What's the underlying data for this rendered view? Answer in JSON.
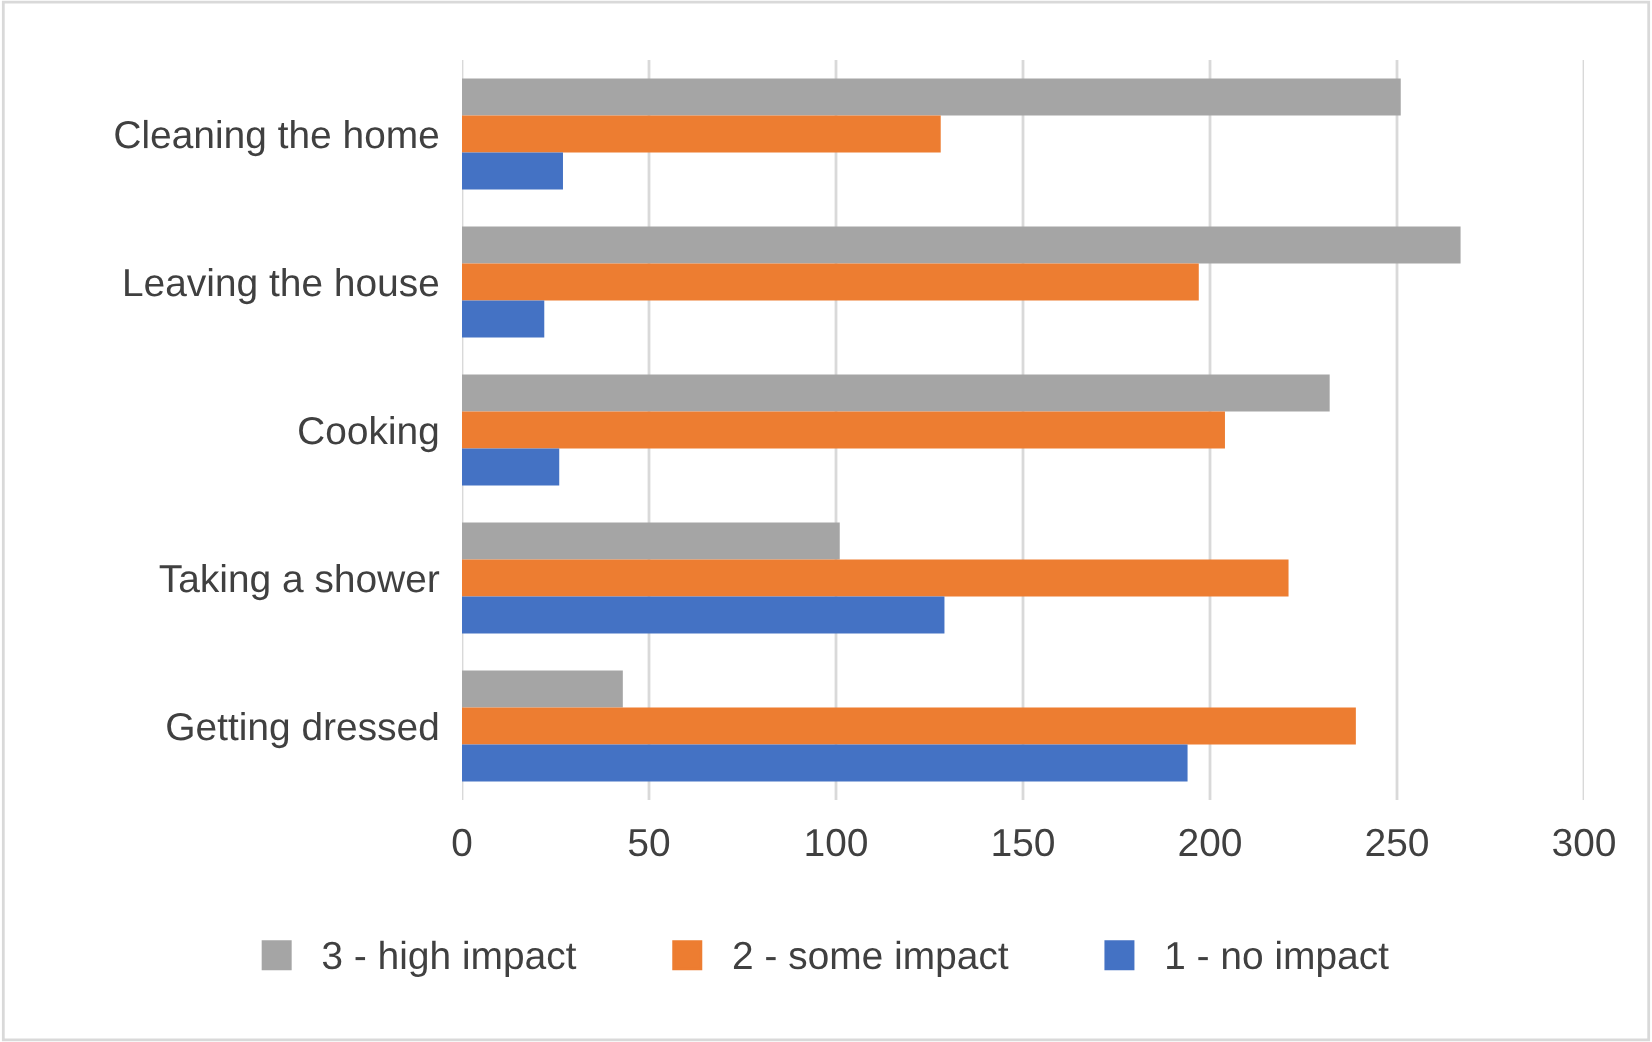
{
  "chart_data": {
    "type": "bar",
    "orientation": "horizontal",
    "categories": [
      "Cleaning the home",
      "Leaving the house",
      "Cooking",
      "Taking a shower",
      "Getting dressed"
    ],
    "series": [
      {
        "name": "3 - high impact",
        "color": "#a5a5a5",
        "values": [
          251,
          267,
          232,
          101,
          43
        ]
      },
      {
        "name": "2 - some impact",
        "color": "#ed7d31",
        "values": [
          128,
          197,
          204,
          221,
          239
        ]
      },
      {
        "name": "1 - no impact",
        "color": "#4472c4",
        "values": [
          27,
          22,
          26,
          129,
          194
        ]
      }
    ],
    "xlim": [
      0,
      300
    ],
    "xticks": [
      0,
      50,
      100,
      150,
      200,
      250,
      300
    ],
    "grid": "x",
    "legend": "bottom"
  }
}
